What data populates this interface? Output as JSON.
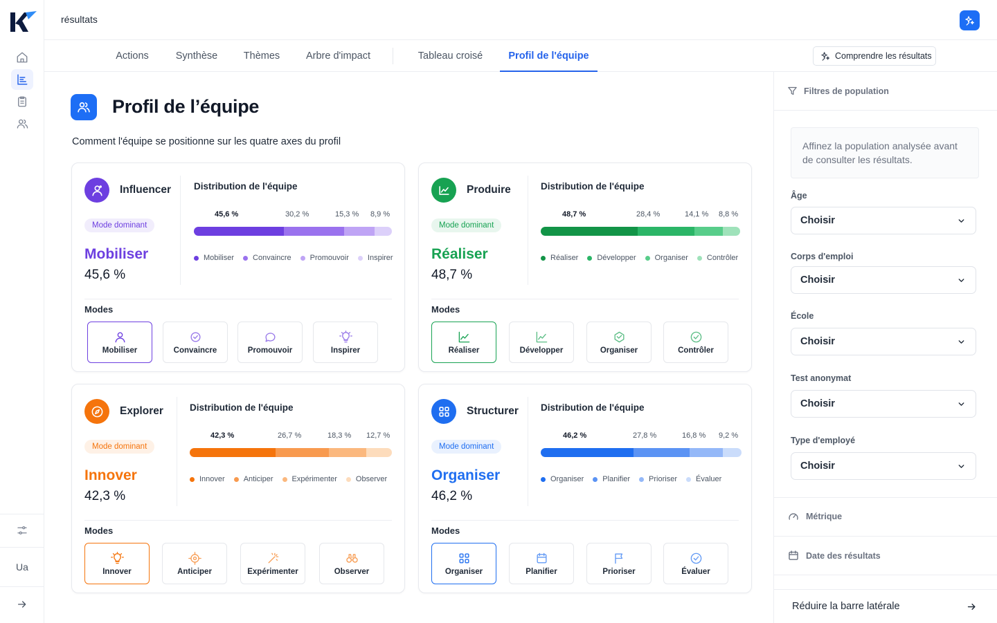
{
  "app": {
    "logo": "K"
  },
  "topbar": {
    "breadcrumb": "résultats"
  },
  "tabs": [
    {
      "label": "Actions"
    },
    {
      "label": "Synthèse"
    },
    {
      "label": "Thèmes"
    },
    {
      "label": "Arbre d'impact"
    },
    {
      "label": "Tableau croisé"
    },
    {
      "label": "Profil de l'équipe",
      "active": true
    }
  ],
  "comprendre_label": "Comprendre les résultats",
  "header": {
    "title": "Profil de l’équipe",
    "subtitle": "Comment l'équipe se positionne sur les quatre axes du profil"
  },
  "rail": {
    "user_initials": "Ua"
  },
  "common": {
    "dominant_label": "Mode dominant",
    "distribution_title": "Distribution de l'équipe",
    "modes_label": "Modes"
  },
  "cards": [
    {
      "name": "Influencer",
      "color": "#6d3fe0",
      "badge_bg": "#f1edfc",
      "dominant_mode": "Mobiliser",
      "dominant_pct": "45,6 %",
      "distribution": [
        {
          "name": "Mobiliser",
          "value": 45.6,
          "label": "45,6 %",
          "color": "#6d3fe0"
        },
        {
          "name": "Convaincre",
          "value": 30.2,
          "label": "30,2 %",
          "color": "#9a72ee"
        },
        {
          "name": "Promouvoir",
          "value": 15.3,
          "label": "15,3 %",
          "color": "#bfa4f5"
        },
        {
          "name": "Inspirer",
          "value": 8.9,
          "label": "8,9 %",
          "color": "#dcd0fa"
        }
      ],
      "modes": [
        {
          "label": "Mobiliser",
          "icon": "user-icon",
          "selected": true
        },
        {
          "label": "Convaincre",
          "icon": "badge-icon"
        },
        {
          "label": "Promouvoir",
          "icon": "chat-icon"
        },
        {
          "label": "Inspirer",
          "icon": "bulb-icon"
        }
      ]
    },
    {
      "name": "Produire",
      "color": "#17a252",
      "badge_bg": "#e8f6ee",
      "dominant_mode": "Réaliser",
      "dominant_pct": "48,7 %",
      "distribution": [
        {
          "name": "Réaliser",
          "value": 48.7,
          "label": "48,7 %",
          "color": "#129447"
        },
        {
          "name": "Développer",
          "value": 28.4,
          "label": "28,4 %",
          "color": "#2bb567"
        },
        {
          "name": "Organiser",
          "value": 14.1,
          "label": "14,1 %",
          "color": "#58cd8a"
        },
        {
          "name": "Contrôler",
          "value": 8.8,
          "label": "8,8 %",
          "color": "#9fe2ba"
        }
      ],
      "modes": [
        {
          "label": "Réaliser",
          "icon": "chart-icon",
          "selected": true
        },
        {
          "label": "Développer",
          "icon": "chart-icon"
        },
        {
          "label": "Organiser",
          "icon": "box-icon"
        },
        {
          "label": "Contrôler",
          "icon": "check-shield-icon"
        }
      ]
    },
    {
      "name": "Explorer",
      "color": "#f5740c",
      "badge_bg": "#fef1e6",
      "dominant_mode": "Innover",
      "dominant_pct": "42,3 %",
      "distribution": [
        {
          "name": "Innover",
          "value": 42.3,
          "label": "42,3 %",
          "color": "#f5740c"
        },
        {
          "name": "Anticiper",
          "value": 26.7,
          "label": "26,7 %",
          "color": "#f89a4f"
        },
        {
          "name": "Expérimenter",
          "value": 18.3,
          "label": "18,3 %",
          "color": "#fbb87e"
        },
        {
          "name": "Observer",
          "value": 12.7,
          "label": "12,7 %",
          "color": "#fddcbc"
        }
      ],
      "modes": [
        {
          "label": "Innover",
          "icon": "bulb-icon",
          "selected": true
        },
        {
          "label": "Anticiper",
          "icon": "target-icon"
        },
        {
          "label": "Expérimenter",
          "icon": "wand-icon"
        },
        {
          "label": "Observer",
          "icon": "binoculars-icon"
        }
      ]
    },
    {
      "name": "Structurer",
      "color": "#1f6ef0",
      "badge_bg": "#e9f1fe",
      "dominant_mode": "Organiser",
      "dominant_pct": "46,2 %",
      "distribution": [
        {
          "name": "Organiser",
          "value": 46.2,
          "label": "46,2 %",
          "color": "#1f6ef0"
        },
        {
          "name": "Planifier",
          "value": 27.8,
          "label": "27,8 %",
          "color": "#5b93f4"
        },
        {
          "name": "Prioriser",
          "value": 16.8,
          "label": "16,8 %",
          "color": "#94b8f8"
        },
        {
          "name": "Évaluer",
          "value": 9.2,
          "label": "9,2 %",
          "color": "#cadcfb"
        }
      ],
      "modes": [
        {
          "label": "Organiser",
          "icon": "grid-icon",
          "selected": true
        },
        {
          "label": "Planifier",
          "icon": "calendar-icon"
        },
        {
          "label": "Prioriser",
          "icon": "flag-icon"
        },
        {
          "label": "Évaluer",
          "icon": "check-icon"
        }
      ]
    }
  ],
  "sidebar": {
    "filters_title": "Filtres de population",
    "hint": "Affinez la population analysée avant de consulter les résultats.",
    "filters": [
      {
        "label": "Âge",
        "value": "Choisir"
      },
      {
        "label": "Corps d'emploi",
        "value": "Choisir"
      },
      {
        "label": "École",
        "value": "Choisir"
      },
      {
        "label": "Test anonymat",
        "value": "Choisir"
      },
      {
        "label": "Type d'employé",
        "value": "Choisir"
      }
    ],
    "metric_label": "Métrique",
    "date_label": "Date des résultats",
    "collapse_label": "Réduire la barre latérale"
  }
}
